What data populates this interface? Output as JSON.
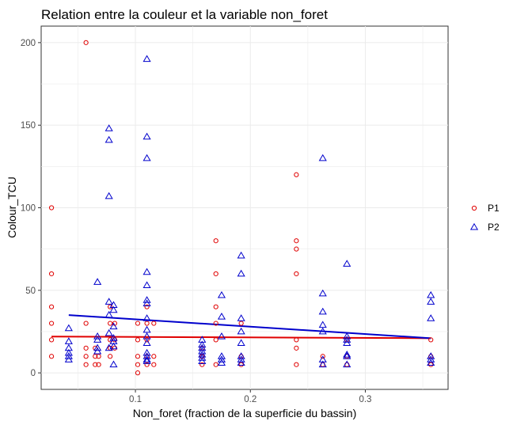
{
  "chart_data": {
    "type": "scatter",
    "title": "Relation entre la couleur et la variable non_foret",
    "xlabel": "Non_foret (fraction de la superficie du bassin)",
    "ylabel": "Colour_TCU",
    "xlim": [
      0.018,
      0.372
    ],
    "ylim": [
      -10,
      210
    ],
    "x_ticks": [
      0.1,
      0.2,
      0.3
    ],
    "x_tick_labels": [
      "0.1",
      "0.2",
      "0.3"
    ],
    "y_ticks": [
      0,
      50,
      100,
      150,
      200
    ],
    "y_tick_labels": [
      "0",
      "50",
      "100",
      "150",
      "200"
    ],
    "grid": true,
    "legend": "right",
    "series": [
      {
        "name": "P1",
        "color": "#e00000",
        "marker": "circle",
        "trend": {
          "x": [
            0.027,
            0.357
          ],
          "y": [
            22,
            21
          ]
        },
        "points": [
          [
            0.027,
            100
          ],
          [
            0.027,
            60
          ],
          [
            0.027,
            40
          ],
          [
            0.027,
            30
          ],
          [
            0.027,
            20
          ],
          [
            0.027,
            10
          ],
          [
            0.057,
            200
          ],
          [
            0.057,
            30
          ],
          [
            0.057,
            15
          ],
          [
            0.057,
            10
          ],
          [
            0.057,
            5
          ],
          [
            0.065,
            15
          ],
          [
            0.065,
            10
          ],
          [
            0.065,
            5
          ],
          [
            0.068,
            10
          ],
          [
            0.068,
            5
          ],
          [
            0.078,
            40
          ],
          [
            0.078,
            30
          ],
          [
            0.078,
            20
          ],
          [
            0.078,
            15
          ],
          [
            0.078,
            10
          ],
          [
            0.082,
            30
          ],
          [
            0.082,
            20
          ],
          [
            0.082,
            15
          ],
          [
            0.102,
            30
          ],
          [
            0.102,
            20
          ],
          [
            0.102,
            10
          ],
          [
            0.102,
            5
          ],
          [
            0.102,
            0
          ],
          [
            0.11,
            40
          ],
          [
            0.11,
            30
          ],
          [
            0.11,
            20
          ],
          [
            0.11,
            10
          ],
          [
            0.11,
            5
          ],
          [
            0.116,
            30
          ],
          [
            0.116,
            10
          ],
          [
            0.116,
            5
          ],
          [
            0.158,
            15
          ],
          [
            0.158,
            10
          ],
          [
            0.158,
            5
          ],
          [
            0.17,
            80
          ],
          [
            0.17,
            60
          ],
          [
            0.17,
            40
          ],
          [
            0.17,
            30
          ],
          [
            0.17,
            20
          ],
          [
            0.17,
            5
          ],
          [
            0.192,
            30
          ],
          [
            0.192,
            10
          ],
          [
            0.192,
            5
          ],
          [
            0.24,
            120
          ],
          [
            0.24,
            80
          ],
          [
            0.24,
            75
          ],
          [
            0.24,
            60
          ],
          [
            0.24,
            20
          ],
          [
            0.24,
            15
          ],
          [
            0.24,
            5
          ],
          [
            0.263,
            10
          ],
          [
            0.263,
            5
          ],
          [
            0.284,
            20
          ],
          [
            0.284,
            10
          ],
          [
            0.284,
            5
          ],
          [
            0.357,
            20
          ],
          [
            0.357,
            10
          ],
          [
            0.357,
            5
          ]
        ]
      },
      {
        "name": "P2",
        "color": "#0000cc",
        "marker": "triangle",
        "trend": {
          "x": [
            0.042,
            0.357
          ],
          "y": [
            35,
            21
          ]
        },
        "points": [
          [
            0.042,
            27
          ],
          [
            0.042,
            19
          ],
          [
            0.042,
            15
          ],
          [
            0.042,
            12
          ],
          [
            0.042,
            10
          ],
          [
            0.042,
            8
          ],
          [
            0.067,
            55
          ],
          [
            0.067,
            22
          ],
          [
            0.067,
            20
          ],
          [
            0.067,
            15
          ],
          [
            0.067,
            13
          ],
          [
            0.077,
            148
          ],
          [
            0.077,
            141
          ],
          [
            0.077,
            107
          ],
          [
            0.077,
            43
          ],
          [
            0.077,
            35
          ],
          [
            0.077,
            24
          ],
          [
            0.077,
            15
          ],
          [
            0.081,
            41
          ],
          [
            0.081,
            38
          ],
          [
            0.081,
            28
          ],
          [
            0.081,
            21
          ],
          [
            0.081,
            19
          ],
          [
            0.081,
            16
          ],
          [
            0.081,
            5
          ],
          [
            0.11,
            190
          ],
          [
            0.11,
            143
          ],
          [
            0.11,
            130
          ],
          [
            0.11,
            61
          ],
          [
            0.11,
            53
          ],
          [
            0.11,
            44
          ],
          [
            0.11,
            42
          ],
          [
            0.11,
            33
          ],
          [
            0.11,
            26
          ],
          [
            0.11,
            22
          ],
          [
            0.11,
            18
          ],
          [
            0.11,
            12
          ],
          [
            0.11,
            10
          ],
          [
            0.11,
            8
          ],
          [
            0.11,
            7
          ],
          [
            0.158,
            20
          ],
          [
            0.158,
            17
          ],
          [
            0.158,
            15
          ],
          [
            0.158,
            13
          ],
          [
            0.158,
            11
          ],
          [
            0.158,
            9
          ],
          [
            0.158,
            7
          ],
          [
            0.175,
            47
          ],
          [
            0.175,
            34
          ],
          [
            0.175,
            22
          ],
          [
            0.175,
            10
          ],
          [
            0.175,
            8
          ],
          [
            0.175,
            6
          ],
          [
            0.192,
            71
          ],
          [
            0.192,
            60
          ],
          [
            0.192,
            33
          ],
          [
            0.192,
            25
          ],
          [
            0.192,
            18
          ],
          [
            0.192,
            10
          ],
          [
            0.192,
            8
          ],
          [
            0.192,
            6
          ],
          [
            0.263,
            130
          ],
          [
            0.263,
            48
          ],
          [
            0.263,
            37
          ],
          [
            0.263,
            29
          ],
          [
            0.263,
            25
          ],
          [
            0.263,
            8
          ],
          [
            0.263,
            5
          ],
          [
            0.284,
            66
          ],
          [
            0.284,
            22
          ],
          [
            0.284,
            20
          ],
          [
            0.284,
            18
          ],
          [
            0.284,
            11
          ],
          [
            0.284,
            10
          ],
          [
            0.284,
            5
          ],
          [
            0.357,
            47
          ],
          [
            0.357,
            43
          ],
          [
            0.357,
            33
          ],
          [
            0.357,
            10
          ],
          [
            0.357,
            8
          ],
          [
            0.357,
            6
          ]
        ]
      }
    ]
  }
}
